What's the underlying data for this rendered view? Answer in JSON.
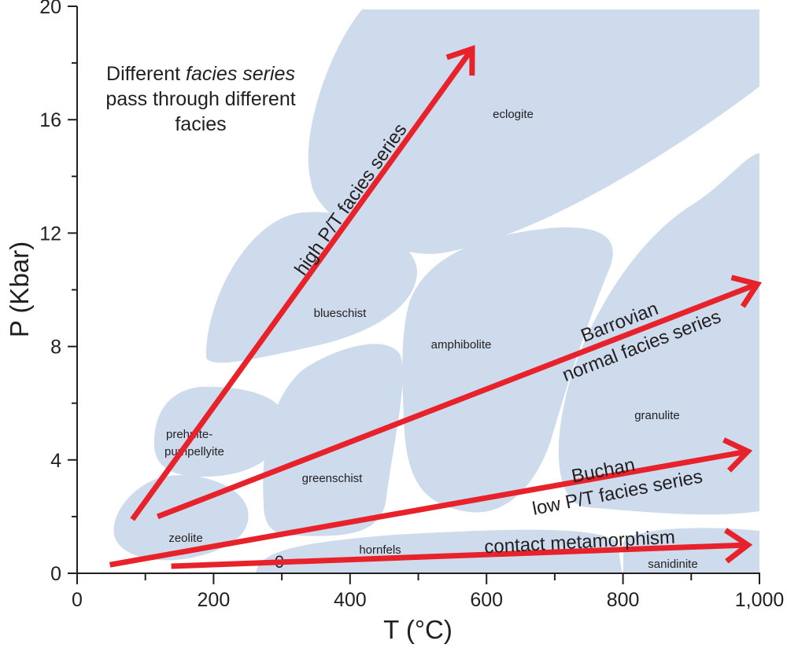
{
  "chart_data": {
    "type": "diagram",
    "xlabel": "T (°C)",
    "xlabel_parts": {
      "main": "T (",
      "sup": "o",
      "end": "C)"
    },
    "ylabel": "P (Kbar)",
    "xlim": [
      0,
      1000
    ],
    "ylim": [
      0,
      20
    ],
    "x_ticks": [
      "0",
      "200",
      "400",
      "600",
      "800",
      "1,000"
    ],
    "y_ticks": [
      "0",
      "4",
      "8",
      "12",
      "16",
      "20"
    ],
    "grid": false,
    "note": {
      "line1_a": "Different ",
      "line1_b": "facies series",
      "line2": "pass through different",
      "line3": "facies"
    },
    "facies": {
      "eclogite": "eclogite",
      "blueschist": "blueschist",
      "amphibolite": "amphibolite",
      "granulite": "granulite",
      "greenschist": "greenschist",
      "prehnite1": "prehnite-",
      "prehnite2": "pumpellyite",
      "zeolite": "zeolite",
      "hornfels": "hornfels",
      "sanidinite": "sanidinite",
      "zero_mark": "0"
    },
    "series": [
      {
        "name": "high P/T facies series",
        "start": [
          81,
          1.9
        ],
        "end": [
          579,
          18.5
        ]
      },
      {
        "name": "Barrovian normal facies series",
        "start": [
          118,
          2.0
        ],
        "end": [
          997,
          10.2
        ]
      },
      {
        "name": "Buchan low P/T facies series",
        "start": [
          48,
          0.3
        ],
        "end": [
          983,
          4.3
        ]
      },
      {
        "name": "contact metamorphism",
        "start": [
          138,
          0.25
        ],
        "end": [
          983,
          1.0
        ]
      }
    ],
    "series_labels": {
      "high": "high P/T facies series",
      "barrovian1": "Barrovian",
      "barrovian2": "normal facies series",
      "buchan1": "Buchan",
      "buchan2": "low P/T facies series",
      "contact": "contact metamorphism"
    },
    "colors": {
      "facies_fill": "#cddbed",
      "arrow": "#e8222a",
      "axis": "#231f20"
    }
  }
}
